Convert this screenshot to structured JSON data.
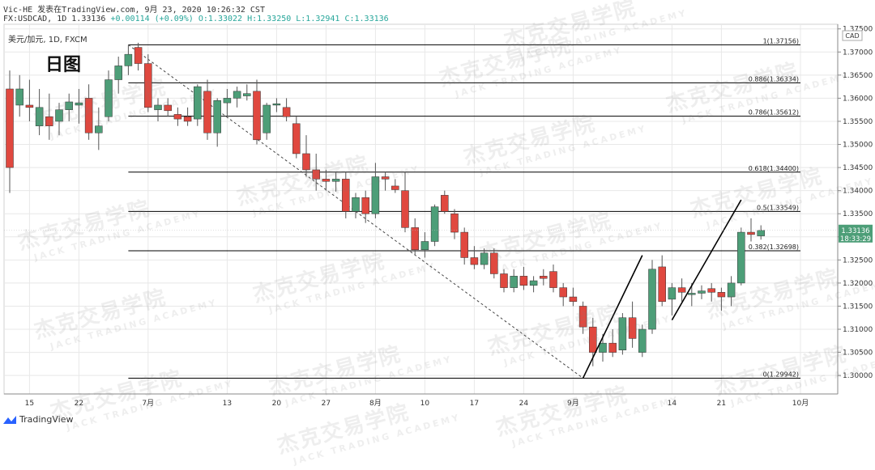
{
  "header": {
    "line1": "Vic-HE 发表在TradingView.com, 9月 23, 2020 10:26:32 CST",
    "line2_symbol": "FX:USDCAD, 1D 1.33136",
    "line2_change": "+0.00114 (+0.09%)",
    "line2_ohlc": "O:1.33022 H:1.33250 L:1.32941 C:1.33136"
  },
  "sub_label": "美元/加元, 1D, FXCM",
  "title_label": "日图",
  "currency": "CAD",
  "price_tag": "1.33136",
  "timer_tag": "18:33:29",
  "watermark": {
    "cn": "杰克交易学院",
    "en": "JACK TRADING ACADEMY"
  },
  "footer_brand": "TradingView",
  "colors": {
    "up": "#4d9e78",
    "down": "#e0483f",
    "fib_line": "#000000",
    "grid": "#e8e8e8",
    "price_tag": "#4d9e78"
  },
  "chart_data": {
    "type": "candlestick",
    "symbol": "USDCAD",
    "ylim": [
      1.296,
      1.376
    ],
    "y_ticks": [
      "1.37500",
      "1.37000",
      "1.36500",
      "1.36000",
      "1.35500",
      "1.35000",
      "1.34500",
      "1.34000",
      "1.33500",
      "1.33000",
      "1.32500",
      "1.32000",
      "1.31500",
      "1.31000",
      "1.30500",
      "1.30000"
    ],
    "x_ticks": [
      {
        "label": "15",
        "i": 2
      },
      {
        "label": "22",
        "i": 7
      },
      {
        "label": "7月",
        "i": 14
      },
      {
        "label": "13",
        "i": 22
      },
      {
        "label": "20",
        "i": 27
      },
      {
        "label": "27",
        "i": 32
      },
      {
        "label": "8月",
        "i": 37
      },
      {
        "label": "10",
        "i": 42
      },
      {
        "label": "17",
        "i": 47
      },
      {
        "label": "24",
        "i": 52
      },
      {
        "label": "9月",
        "i": 57
      },
      {
        "label": "14",
        "i": 67
      },
      {
        "label": "21",
        "i": 72
      },
      {
        "label": "10月",
        "i": 80
      }
    ],
    "x_count": 82,
    "candles": [
      [
        1.362,
        1.366,
        1.3395,
        1.345
      ],
      [
        1.3585,
        1.365,
        1.356,
        1.362
      ],
      [
        1.3585,
        1.364,
        1.355,
        1.358
      ],
      [
        1.354,
        1.362,
        1.352,
        1.358
      ],
      [
        1.356,
        1.361,
        1.351,
        1.354
      ],
      [
        1.355,
        1.359,
        1.352,
        1.3575
      ],
      [
        1.3575,
        1.361,
        1.355,
        1.3592
      ],
      [
        1.3585,
        1.362,
        1.3545,
        1.359
      ],
      [
        1.36,
        1.363,
        1.351,
        1.3525
      ],
      [
        1.3525,
        1.358,
        1.3488,
        1.354
      ],
      [
        1.356,
        1.366,
        1.355,
        1.364
      ],
      [
        1.364,
        1.369,
        1.361,
        1.367
      ],
      [
        1.367,
        1.3715,
        1.365,
        1.3695
      ],
      [
        1.371,
        1.372,
        1.366,
        1.3675
      ],
      [
        1.3675,
        1.3695,
        1.357,
        1.358
      ],
      [
        1.3575,
        1.36,
        1.355,
        1.3585
      ],
      [
        1.3585,
        1.36,
        1.356,
        1.3573
      ],
      [
        1.3565,
        1.358,
        1.354,
        1.3555
      ],
      [
        1.356,
        1.358,
        1.354,
        1.355
      ],
      [
        1.3555,
        1.363,
        1.354,
        1.3625
      ],
      [
        1.3615,
        1.364,
        1.351,
        1.3525
      ],
      [
        1.3525,
        1.36,
        1.3495,
        1.3595
      ],
      [
        1.359,
        1.362,
        1.356,
        1.36
      ],
      [
        1.36,
        1.3625,
        1.358,
        1.3615
      ],
      [
        1.3605,
        1.363,
        1.3595,
        1.361
      ],
      [
        1.3615,
        1.364,
        1.35,
        1.351
      ],
      [
        1.3525,
        1.359,
        1.351,
        1.3585
      ],
      [
        1.3585,
        1.36,
        1.357,
        1.3588
      ],
      [
        1.358,
        1.36,
        1.355,
        1.356
      ],
      [
        1.3545,
        1.356,
        1.347,
        1.348
      ],
      [
        1.348,
        1.352,
        1.343,
        1.3445
      ],
      [
        1.3445,
        1.348,
        1.34,
        1.3425
      ],
      [
        1.3425,
        1.3445,
        1.34,
        1.342
      ],
      [
        1.342,
        1.344,
        1.3398,
        1.3425
      ],
      [
        1.3425,
        1.344,
        1.334,
        1.3355
      ],
      [
        1.3355,
        1.3395,
        1.334,
        1.3385
      ],
      [
        1.3385,
        1.34,
        1.333,
        1.335
      ],
      [
        1.335,
        1.346,
        1.334,
        1.343
      ],
      [
        1.343,
        1.344,
        1.34,
        1.3425
      ],
      [
        1.341,
        1.3425,
        1.3395,
        1.3402
      ],
      [
        1.34,
        1.344,
        1.331,
        1.332
      ],
      [
        1.332,
        1.334,
        1.326,
        1.3272
      ],
      [
        1.3272,
        1.331,
        1.3255,
        1.329
      ],
      [
        1.329,
        1.337,
        1.328,
        1.3365
      ],
      [
        1.339,
        1.34,
        1.335,
        1.3355
      ],
      [
        1.335,
        1.336,
        1.3295,
        1.331
      ],
      [
        1.331,
        1.332,
        1.324,
        1.3255
      ],
      [
        1.3255,
        1.328,
        1.323,
        1.324
      ],
      [
        1.324,
        1.3275,
        1.323,
        1.3265
      ],
      [
        1.3265,
        1.3275,
        1.321,
        1.322
      ],
      [
        1.322,
        1.323,
        1.318,
        1.319
      ],
      [
        1.319,
        1.323,
        1.318,
        1.3215
      ],
      [
        1.3215,
        1.3235,
        1.3185,
        1.3195
      ],
      [
        1.3195,
        1.3215,
        1.318,
        1.3205
      ],
      [
        1.3215,
        1.323,
        1.3195,
        1.321
      ],
      [
        1.3225,
        1.324,
        1.318,
        1.319
      ],
      [
        1.319,
        1.32,
        1.315,
        1.317
      ],
      [
        1.317,
        1.319,
        1.315,
        1.316
      ],
      [
        1.315,
        1.316,
        1.309,
        1.3105
      ],
      [
        1.3105,
        1.3125,
        1.302,
        1.305
      ],
      [
        1.305,
        1.309,
        1.303,
        1.307
      ],
      [
        1.307,
        1.31,
        1.304,
        1.305
      ],
      [
        1.3055,
        1.3135,
        1.3045,
        1.3125
      ],
      [
        1.3125,
        1.316,
        1.306,
        1.308
      ],
      [
        1.305,
        1.311,
        1.304,
        1.31
      ],
      [
        1.31,
        1.325,
        1.309,
        1.323
      ],
      [
        1.3235,
        1.326,
        1.315,
        1.316
      ],
      [
        1.3165,
        1.32,
        1.313,
        1.319
      ],
      [
        1.319,
        1.321,
        1.316,
        1.318
      ],
      [
        1.3175,
        1.32,
        1.315,
        1.3178
      ],
      [
        1.3178,
        1.3195,
        1.3165,
        1.3183
      ],
      [
        1.3188,
        1.32,
        1.316,
        1.318
      ],
      [
        1.318,
        1.319,
        1.314,
        1.317
      ],
      [
        1.317,
        1.3215,
        1.315,
        1.32
      ],
      [
        1.32,
        1.332,
        1.3195,
        1.331
      ],
      [
        1.331,
        1.334,
        1.329,
        1.3305
      ],
      [
        1.3302,
        1.3325,
        1.3294,
        1.3314
      ]
    ],
    "fib_levels": [
      {
        "ratio": "1",
        "price": 1.37156,
        "label": "1(1.37156)"
      },
      {
        "ratio": "0.886",
        "price": 1.36334,
        "label": "0.886(1.36334)"
      },
      {
        "ratio": "0.786",
        "price": 1.35612,
        "label": "0.786(1.35612)"
      },
      {
        "ratio": "0.618",
        "price": 1.344,
        "label": "0.618(1.34400)"
      },
      {
        "ratio": "0.5",
        "price": 1.33549,
        "label": "0.5(1.33549)"
      },
      {
        "ratio": "0.382",
        "price": 1.32698,
        "label": "0.382(1.32698)"
      },
      {
        "ratio": "0",
        "price": 1.29942,
        "label": "0(1.29942)"
      }
    ],
    "fib_start_index": 12,
    "fib_end_index": 80,
    "trend_diagonal": {
      "from": [
        12,
        1.37156
      ],
      "to": [
        58,
        1.29942
      ]
    },
    "trend_lines": [
      {
        "from": [
          58,
          1.29942
        ],
        "to": [
          64,
          1.326
        ]
      },
      {
        "from": [
          67,
          1.312
        ],
        "to": [
          74,
          1.338
        ]
      }
    ]
  }
}
